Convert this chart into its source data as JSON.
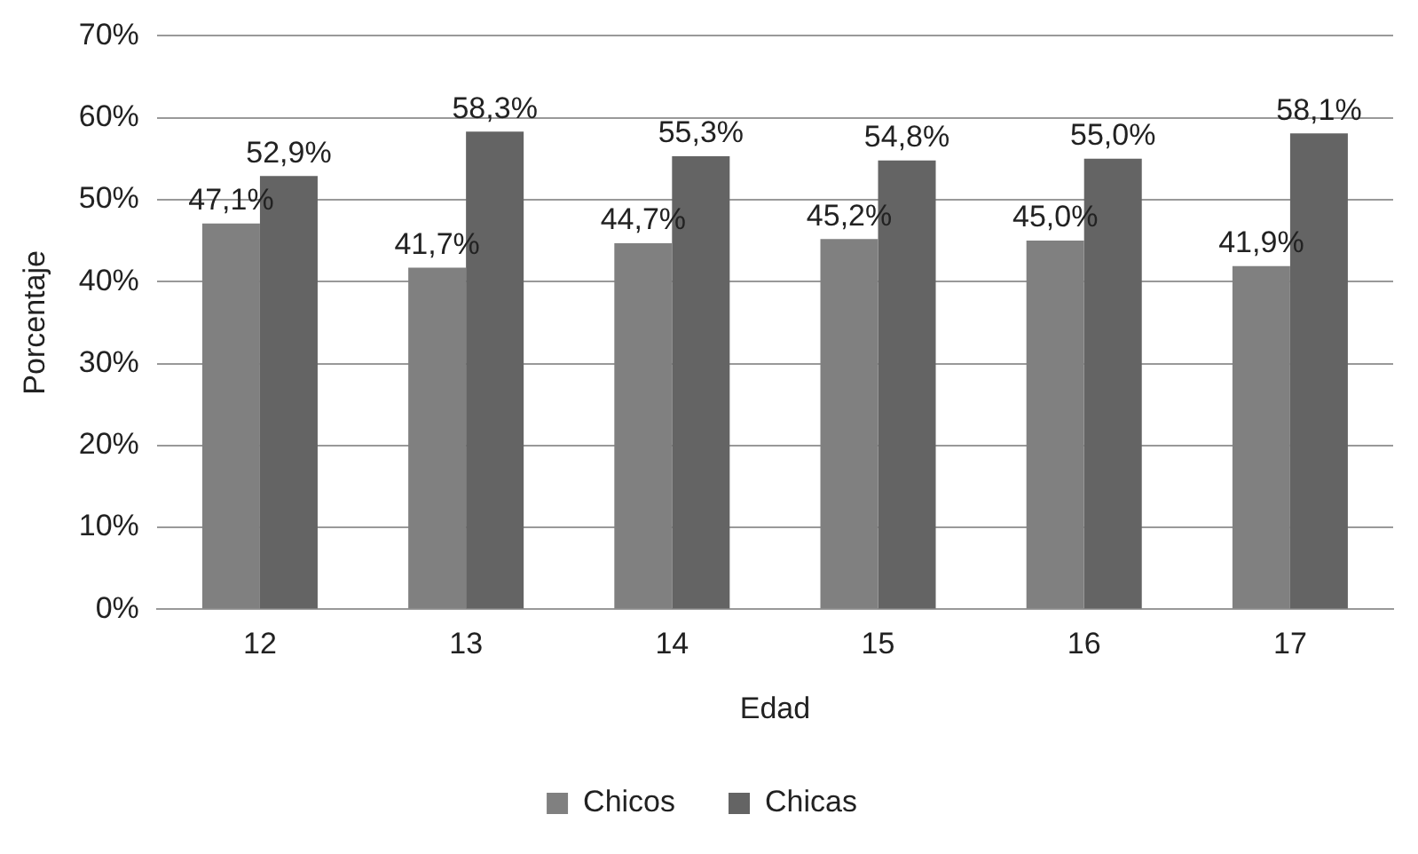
{
  "chart_data": {
    "type": "bar",
    "xlabel": "Edad",
    "ylabel": "Porcentaje",
    "categories": [
      "12",
      "13",
      "14",
      "15",
      "16",
      "17"
    ],
    "series": [
      {
        "name": "Chicos",
        "color": "#808080",
        "values": [
          47.1,
          41.7,
          44.7,
          45.2,
          45.0,
          41.9
        ],
        "value_labels": [
          "47,1%",
          "41,7%",
          "44,7%",
          "45,2%",
          "45,0%",
          "41,9%"
        ]
      },
      {
        "name": "Chicas",
        "color": "#646464",
        "values": [
          52.9,
          58.3,
          55.3,
          54.8,
          55.0,
          58.1
        ],
        "value_labels": [
          "52,9%",
          "58,3%",
          "55,3%",
          "54,8%",
          "55,0%",
          "58,1%"
        ]
      }
    ],
    "ylim": [
      0,
      70
    ],
    "yticks": [
      {
        "value": 0,
        "label": "0%"
      },
      {
        "value": 10,
        "label": "10%"
      },
      {
        "value": 20,
        "label": "20%"
      },
      {
        "value": 30,
        "label": "30%"
      },
      {
        "value": 40,
        "label": "40%"
      },
      {
        "value": 50,
        "label": "50%"
      },
      {
        "value": 60,
        "label": "60%"
      },
      {
        "value": 70,
        "label": "70%"
      }
    ],
    "grid": "y",
    "legend": "bottom"
  }
}
